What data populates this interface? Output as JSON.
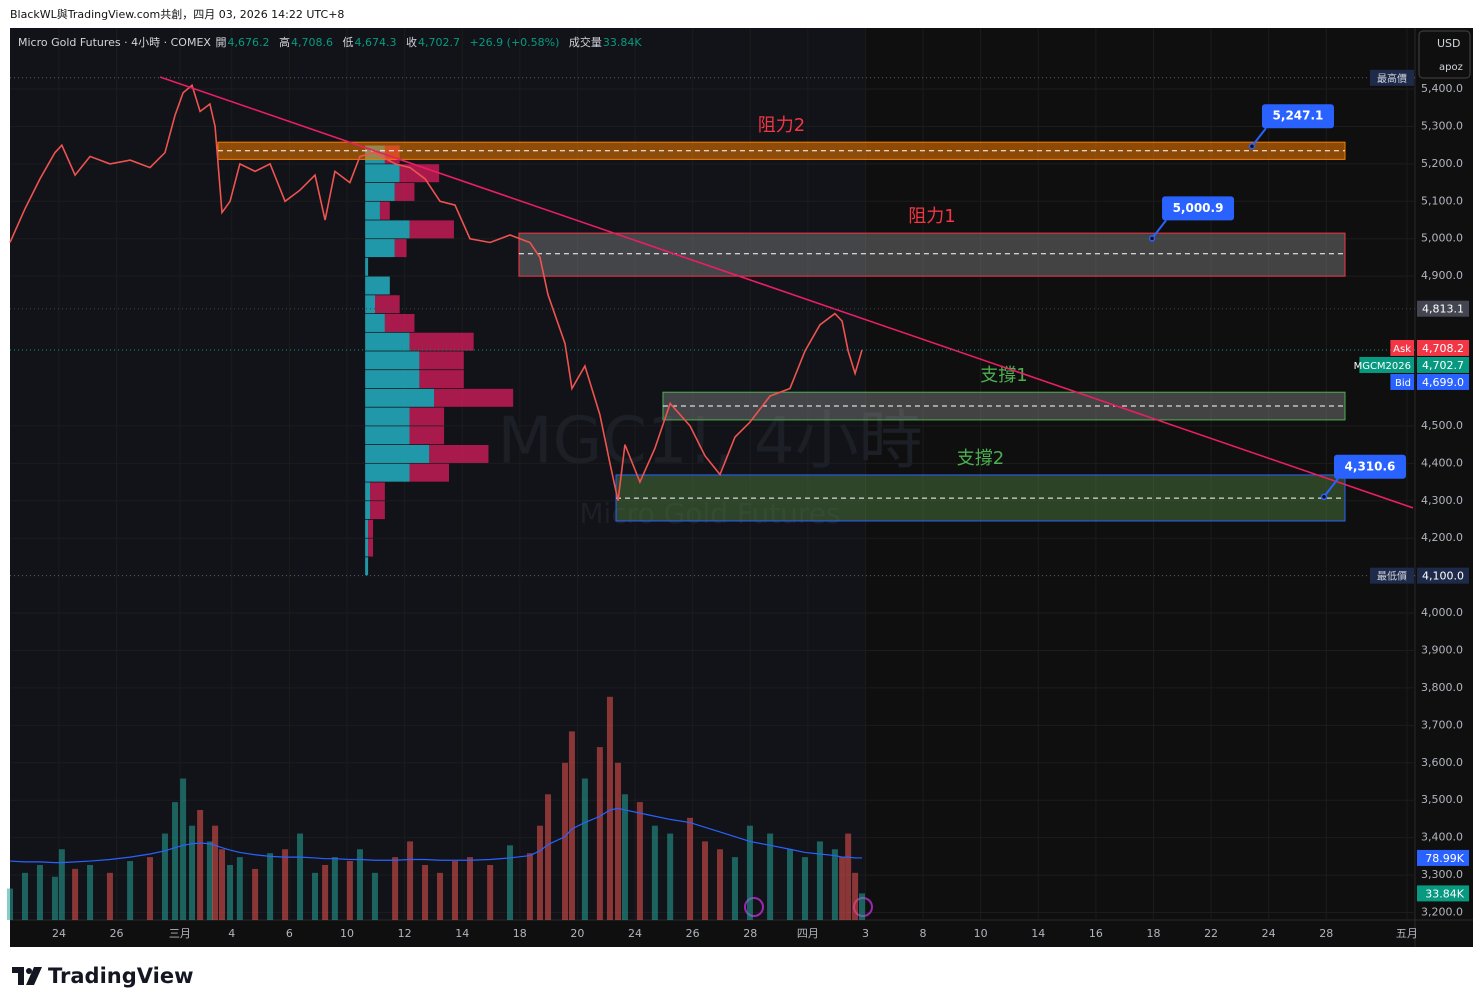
{
  "header": "BlackWL與TradingView.com共創，四月 03, 2026 14:22 UTC+8",
  "legend": {
    "title": "Micro Gold Futures · 4小時 · COMEX",
    "open_key": "開",
    "open": "4,676.2",
    "high_key": "高",
    "high": "4,708.6",
    "low_key": "低",
    "low": "4,674.3",
    "close_key": "收",
    "close": "4,702.7",
    "change": "+26.9 (+0.58%)",
    "volume_key": "成交量",
    "volume": "33.84K"
  },
  "currency": "USD",
  "user": "apoz",
  "watermark": {
    "symbol": "MGC1!, 4小時",
    "name": "Micro Gold Futures"
  },
  "brand": "TradingView",
  "chart_data": {
    "type": "line",
    "color": "#ef5350",
    "xlim": [
      -1.7,
      47.08
    ],
    "ylim": [
      3180,
      5563
    ],
    "y2lim": [
      0,
      1135
    ],
    "xticks": [
      {
        "value": 0,
        "label": "24"
      },
      {
        "value": 2,
        "label": "26"
      },
      {
        "value": 4.2,
        "label": "三月"
      },
      {
        "value": 6,
        "label": "4"
      },
      {
        "value": 8,
        "label": "6"
      },
      {
        "value": 10,
        "label": "10"
      },
      {
        "value": 12,
        "label": "12"
      },
      {
        "value": 14,
        "label": "14"
      },
      {
        "value": 16,
        "label": "18"
      },
      {
        "value": 18,
        "label": "20"
      },
      {
        "value": 20,
        "label": "24"
      },
      {
        "value": 22,
        "label": "26"
      },
      {
        "value": 24,
        "label": "28"
      },
      {
        "value": 26,
        "label": "四月"
      },
      {
        "value": 28,
        "label": "3"
      },
      {
        "value": 30,
        "label": "8"
      },
      {
        "value": 32,
        "label": "10"
      },
      {
        "value": 34,
        "label": "14"
      },
      {
        "value": 36,
        "label": "16"
      },
      {
        "value": 38,
        "label": "18"
      },
      {
        "value": 40,
        "label": "22"
      },
      {
        "value": 42,
        "label": "24"
      },
      {
        "value": 44,
        "label": "28"
      },
      {
        "value": 46.8,
        "label": "五月"
      }
    ],
    "yticks": [
      {
        "value": 3200,
        "label": "3,200.0"
      },
      {
        "value": 3300,
        "label": "3,300.0"
      },
      {
        "value": 3400,
        "label": "3,400.0"
      },
      {
        "value": 3500,
        "label": "3,500.0"
      },
      {
        "value": 3600,
        "label": "3,600.0"
      },
      {
        "value": 3700,
        "label": "3,700.0"
      },
      {
        "value": 3800,
        "label": "3,800.0"
      },
      {
        "value": 3900,
        "label": "3,900.0"
      },
      {
        "value": 4000,
        "label": "4,000.0"
      },
      {
        "value": 4200,
        "label": "4,200.0"
      },
      {
        "value": 4300,
        "label": "4,300.0"
      },
      {
        "value": 4400,
        "label": "4,400.0"
      },
      {
        "value": 4500,
        "label": "4,500.0"
      },
      {
        "value": 4900,
        "label": "4,900.0"
      },
      {
        "value": 5000,
        "label": "5,000.0"
      },
      {
        "value": 5100,
        "label": "5,100.0"
      },
      {
        "value": 5200,
        "label": "5,200.0"
      },
      {
        "value": 5300,
        "label": "5,300.0"
      },
      {
        "value": 5400,
        "label": "5,400.0"
      }
    ],
    "grid": true,
    "x": [
      -1.7,
      -1.18,
      -0.66,
      -0.14,
      0.1,
      0.56,
      1.08,
      1.77,
      2.47,
      3.16,
      3.68,
      4.03,
      4.31,
      4.62,
      4.9,
      5.24,
      5.42,
      5.66,
      5.94,
      6.28,
      6.81,
      7.33,
      7.85,
      8.37,
      8.89,
      9.24,
      9.58,
      10.1,
      10.45,
      10.97,
      11.67,
      12.19,
      12.71,
      13.23,
      13.75,
      14.27,
      14.97,
      15.66,
      16.35,
      16.7,
      16.98,
      17.57,
      17.81,
      18.26,
      18.78,
      19.13,
      19.41,
      19.65,
      20.17,
      20.69,
      21.22,
      21.91,
      22.43,
      22.95,
      23.47,
      23.99,
      24.69,
      25.38,
      25.9,
      26.42,
      26.94,
      27.19,
      27.4,
      27.64,
      27.88
    ],
    "values": [
      4990,
      5080,
      5160,
      5230,
      5250,
      5170,
      5220,
      5200,
      5210,
      5190,
      5230,
      5330,
      5390,
      5410,
      5340,
      5360,
      5300,
      5070,
      5100,
      5200,
      5180,
      5200,
      5100,
      5130,
      5170,
      5050,
      5180,
      5150,
      5220,
      5230,
      5200,
      5190,
      5160,
      5100,
      5090,
      5000,
      4990,
      5010,
      4990,
      4950,
      4850,
      4720,
      4600,
      4660,
      4530,
      4400,
      4300,
      4450,
      4350,
      4440,
      4560,
      4500,
      4420,
      4370,
      4470,
      4510,
      4580,
      4600,
      4700,
      4770,
      4800,
      4780,
      4700,
      4640,
      4702.7
    ],
    "volume": {
      "up_color": "rgba(38,166,154,0.55)",
      "down_color": "rgba(239,83,80,0.55)",
      "ma_color": "#2962ff",
      "values": [
        40,
        60,
        70,
        55,
        90,
        65,
        70,
        60,
        75,
        80,
        110,
        150,
        180,
        120,
        140,
        100,
        120,
        90,
        70,
        80,
        65,
        85,
        90,
        110,
        60,
        70,
        80,
        75,
        90,
        60,
        80,
        100,
        70,
        60,
        75,
        80,
        70,
        95,
        85,
        120,
        160,
        200,
        240,
        180,
        220,
        284,
        200,
        160,
        150,
        120,
        110,
        130,
        100,
        90,
        80,
        120,
        110,
        90,
        80,
        100,
        90,
        80,
        110,
        60,
        33.84
      ],
      "ma": [
        75,
        74,
        74,
        73,
        73,
        74,
        75,
        77,
        80,
        84,
        88,
        92,
        95,
        97,
        98,
        97,
        95,
        92,
        89,
        86,
        83,
        81,
        80,
        80,
        79,
        78,
        78,
        77,
        77,
        76,
        76,
        77,
        77,
        76,
        76,
        76,
        77,
        79,
        82,
        88,
        96,
        106,
        116,
        124,
        132,
        140,
        142,
        140,
        136,
        132,
        128,
        124,
        118,
        112,
        106,
        100,
        95,
        90,
        86,
        84,
        82,
        80,
        80,
        79,
        78.99
      ],
      "last": {
        "value": 33.84,
        "label": "33.84K"
      },
      "ma_last": {
        "value": 78.99,
        "label": "78.99K"
      }
    },
    "profile": {
      "start": 10.63,
      "xlim": [
        0,
        150
      ],
      "up_color": "rgba(38,198,218,0.75)",
      "down_color": "rgba(233,30,99,0.7)",
      "prices": [
        5225,
        5175,
        5125,
        5075,
        5025,
        4975,
        4925,
        4875,
        4825,
        4775,
        4725,
        4675,
        4625,
        4575,
        4525,
        4475,
        4425,
        4375,
        4325,
        4275,
        4225,
        4175,
        4125
      ],
      "up": [
        20,
        35,
        30,
        15,
        45,
        30,
        3,
        25,
        10,
        20,
        45,
        55,
        55,
        70,
        45,
        45,
        65,
        45,
        5,
        5,
        3,
        3,
        3
      ],
      "down": [
        15,
        40,
        20,
        10,
        45,
        12,
        0,
        0,
        25,
        30,
        65,
        45,
        45,
        80,
        35,
        35,
        60,
        40,
        15,
        15,
        5,
        5,
        0
      ]
    },
    "trendline": {
      "x": [
        3.51,
        47.01
      ],
      "values": [
        5432,
        4281
      ],
      "color": "#e91e63"
    },
    "zones": [
      {
        "name": "阻力2",
        "top": 5258,
        "bottom": 5212,
        "mid": 5235,
        "start": 5.52,
        "end": 44.65,
        "fill": "rgba(245,124,0,0.55)",
        "border": "#f57c00",
        "text_color": "#f23645"
      },
      {
        "name": "阻力1",
        "top": 5015,
        "bottom": 4900,
        "mid": 4960,
        "start": 15.97,
        "end": 44.65,
        "fill": "rgba(130,130,130,0.45)",
        "border": "#f23645",
        "text_color": "#f23645"
      },
      {
        "name": "支撐1",
        "top": 4590,
        "bottom": 4516,
        "mid": 4553,
        "start": 20.97,
        "end": 44.65,
        "fill": "rgba(130,130,130,0.45)",
        "border": "#4caf50",
        "text_color": "#4caf50"
      },
      {
        "name": "支撐2",
        "top": 4369,
        "bottom": 4246,
        "mid": 4307,
        "start": 19.34,
        "end": 44.65,
        "fill": "rgba(76,120,60,0.5)",
        "border": "#2962ff",
        "text_color": "#4caf50"
      }
    ],
    "callouts": [
      {
        "x": 41.42,
        "value": {
          "value": 5247.1,
          "label": "5,247.1"
        }
      },
      {
        "x": 37.95,
        "value": {
          "value": 5000.9,
          "label": "5,000.9"
        }
      },
      {
        "x": 43.92,
        "value": {
          "value": 4310.6,
          "label": "4,310.6"
        }
      }
    ],
    "high": {
      "name": "最高價",
      "value": 5430
    },
    "low": {
      "name": "最低價",
      "value": {
        "value": 4100,
        "label": "4,100.0"
      }
    },
    "marker": {
      "value": {
        "value": 4813.1,
        "label": "4,813.1"
      },
      "color": "#434651"
    },
    "quotes": [
      {
        "name": "Ask",
        "value": {
          "value": 4708.2,
          "label": "4,708.2"
        },
        "color": "#f23645"
      },
      {
        "name": "MGCM2026",
        "value": {
          "value": 4702.7,
          "label": "4,702.7"
        },
        "color": "#089981"
      },
      {
        "name": "Bid",
        "value": {
          "value": 4699.0,
          "label": "4,699.0"
        },
        "color": "#2962ff"
      }
    ]
  }
}
